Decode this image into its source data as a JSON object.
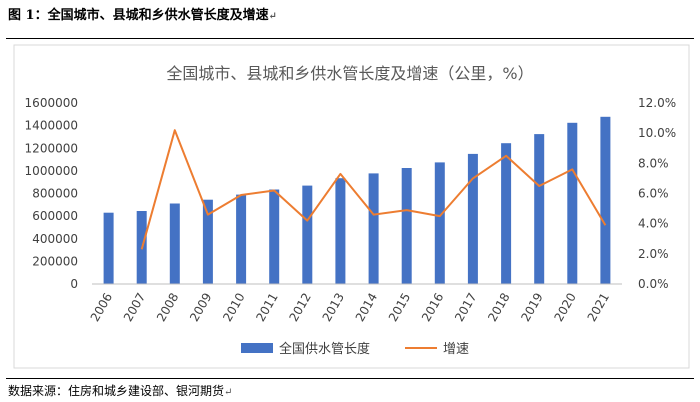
{
  "figure": {
    "caption": "图 1：全国城市、县城和乡供水管长度及增速",
    "source": "数据来源：住房和城乡建设部、银河期货"
  },
  "chart_data": {
    "type": "bar",
    "title": "全国城市、县城和乡供水管长度及增速（公里，%）",
    "categories": [
      "2006",
      "2007",
      "2008",
      "2009",
      "2010",
      "2011",
      "2012",
      "2013",
      "2014",
      "2015",
      "2016",
      "2017",
      "2018",
      "2019",
      "2020",
      "2021"
    ],
    "series": [
      {
        "name": "全国供水管长度",
        "type": "bar",
        "axis": "left",
        "color": "#4472c4",
        "values": [
          630000,
          645000,
          712000,
          745000,
          790000,
          835000,
          870000,
          935000,
          978000,
          1025000,
          1075000,
          1150000,
          1245000,
          1325000,
          1425000,
          1478000
        ]
      },
      {
        "name": "增速",
        "type": "line",
        "axis": "right",
        "color": "#ed7d31",
        "values": [
          null,
          2.3,
          10.2,
          4.6,
          5.9,
          6.2,
          4.2,
          7.3,
          4.6,
          4.9,
          4.5,
          7.0,
          8.5,
          6.5,
          7.6,
          3.9
        ]
      }
    ],
    "y_left": {
      "min": 0,
      "max": 1600000,
      "ticks": [
        "0",
        "200000",
        "400000",
        "600000",
        "800000",
        "1000000",
        "1200000",
        "1400000",
        "1600000"
      ]
    },
    "y_right": {
      "min": 0,
      "max": 12,
      "ticks": [
        "0.0%",
        "2.0%",
        "4.0%",
        "6.0%",
        "8.0%",
        "10.0%",
        "12.0%"
      ]
    },
    "grid": false,
    "legend_position": "bottom"
  }
}
